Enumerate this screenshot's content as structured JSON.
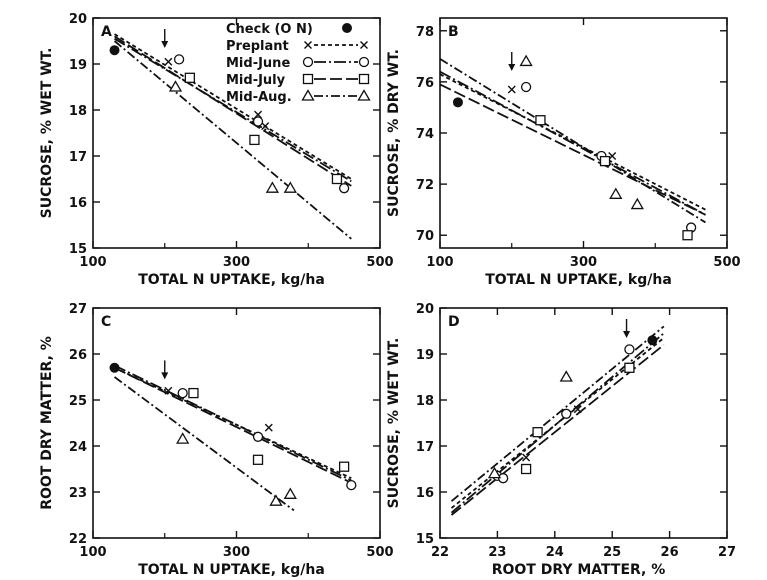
{
  "legend": {
    "check_label": "Check (O N)",
    "entries": [
      {
        "label": "Preplant",
        "marker": "x",
        "dash": "4,3"
      },
      {
        "label": "Mid-June",
        "marker": "circle",
        "dash": "12,3,2,3"
      },
      {
        "label": "Mid-July",
        "marker": "square",
        "dash": "12,4"
      },
      {
        "label": "Mid-Aug.",
        "marker": "triangle",
        "dash": "9,3,2,3"
      }
    ]
  },
  "chart_data": [
    {
      "panel": "A",
      "type": "scatter",
      "xlabel": "TOTAL N UPTAKE, kg/ha",
      "ylabel": "SUCROSE, % WET WT.",
      "xlim": [
        100,
        500
      ],
      "ylim": [
        15,
        20
      ],
      "xticks": [
        100,
        300,
        500
      ],
      "yticks": [
        15,
        16,
        17,
        18,
        19,
        20
      ],
      "arrow_at": [
        200,
        19.5
      ],
      "check": {
        "x": 130,
        "y": 19.3
      },
      "series": [
        {
          "name": "Preplant",
          "points": [
            [
              205,
              19.05
            ],
            [
              330,
              17.9
            ],
            [
              340,
              17.65
            ]
          ],
          "line": [
            [
              130,
              19.65
            ],
            [
              460,
              16.5
            ]
          ]
        },
        {
          "name": "Mid-June",
          "points": [
            [
              220,
              19.1
            ],
            [
              330,
              17.75
            ],
            [
              450,
              16.3
            ]
          ],
          "line": [
            [
              130,
              19.55
            ],
            [
              460,
              16.45
            ]
          ]
        },
        {
          "name": "Mid-July",
          "points": [
            [
              235,
              18.7
            ],
            [
              325,
              17.35
            ],
            [
              440,
              16.5
            ]
          ],
          "line": [
            [
              130,
              19.6
            ],
            [
              460,
              16.35
            ]
          ]
        },
        {
          "name": "Mid-Aug.",
          "points": [
            [
              215,
              18.5
            ],
            [
              350,
              16.3
            ],
            [
              375,
              16.3
            ]
          ],
          "line": [
            [
              130,
              19.5
            ],
            [
              460,
              15.2
            ]
          ]
        }
      ]
    },
    {
      "panel": "B",
      "type": "scatter",
      "xlabel": "TOTAL N UPTAKE, kg/ha",
      "ylabel": "SUCROSE, % DRY WT.",
      "xlim": [
        100,
        500
      ],
      "ylim": [
        69.5,
        78.5
      ],
      "xticks": [
        100,
        300,
        500
      ],
      "yticks": [
        70,
        72,
        74,
        76,
        78
      ],
      "arrow_at": [
        200,
        76.7
      ],
      "check": {
        "x": 125,
        "y": 75.2
      },
      "series": [
        {
          "name": "Preplant",
          "points": [
            [
              200,
              75.7
            ],
            [
              340,
              73.1
            ]
          ],
          "line": [
            [
              100,
              76.3
            ],
            [
              470,
              71.0
            ]
          ]
        },
        {
          "name": "Mid-June",
          "points": [
            [
              220,
              75.8
            ],
            [
              325,
              73.1
            ],
            [
              450,
              70.3
            ]
          ],
          "line": [
            [
              100,
              76.4
            ],
            [
              470,
              70.8
            ]
          ]
        },
        {
          "name": "Mid-July",
          "points": [
            [
              240,
              74.5
            ],
            [
              330,
              72.9
            ],
            [
              445,
              70.0
            ]
          ],
          "line": [
            [
              100,
              75.9
            ],
            [
              470,
              70.8
            ]
          ]
        },
        {
          "name": "Mid-Aug.",
          "points": [
            [
              220,
              76.8
            ],
            [
              345,
              71.6
            ],
            [
              375,
              71.2
            ]
          ],
          "line": [
            [
              100,
              76.9
            ],
            [
              470,
              70.5
            ]
          ]
        }
      ]
    },
    {
      "panel": "C",
      "type": "scatter",
      "xlabel": "TOTAL N UPTAKE, kg/ha",
      "ylabel": "ROOT DRY MATTER, %",
      "xlim": [
        100,
        500
      ],
      "ylim": [
        22,
        27
      ],
      "xticks": [
        100,
        300,
        500
      ],
      "yticks": [
        22,
        23,
        24,
        25,
        26,
        27
      ],
      "arrow_at": [
        200,
        25.6
      ],
      "check": {
        "x": 130,
        "y": 25.7
      },
      "series": [
        {
          "name": "Preplant",
          "points": [
            [
              205,
              25.2
            ],
            [
              345,
              24.4
            ]
          ],
          "line": [
            [
              130,
              25.7
            ],
            [
              460,
              23.3
            ]
          ]
        },
        {
          "name": "Mid-June",
          "points": [
            [
              225,
              25.15
            ],
            [
              330,
              24.2
            ],
            [
              460,
              23.15
            ]
          ],
          "line": [
            [
              130,
              25.75
            ],
            [
              460,
              23.25
            ]
          ]
        },
        {
          "name": "Mid-July",
          "points": [
            [
              240,
              25.15
            ],
            [
              330,
              23.7
            ],
            [
              450,
              23.55
            ]
          ],
          "line": [
            [
              130,
              25.7
            ],
            [
              460,
              23.2
            ]
          ]
        },
        {
          "name": "Mid-Aug.",
          "points": [
            [
              225,
              24.15
            ],
            [
              355,
              22.8
            ],
            [
              375,
              22.95
            ]
          ],
          "line": [
            [
              130,
              25.5
            ],
            [
              380,
              22.6
            ]
          ]
        }
      ]
    },
    {
      "panel": "D",
      "type": "scatter",
      "xlabel": "ROOT DRY MATTER, %",
      "ylabel": "SUCROSE, % WET WT.",
      "xlim": [
        22,
        27
      ],
      "ylim": [
        15,
        20
      ],
      "xticks": [
        22,
        23,
        24,
        25,
        26,
        27
      ],
      "yticks": [
        15,
        16,
        17,
        18,
        19,
        20
      ],
      "arrow_at": [
        25.25,
        19.5
      ],
      "check": {
        "x": 25.7,
        "y": 19.3
      },
      "series": [
        {
          "name": "Preplant",
          "points": [
            [
              23.5,
              16.75
            ],
            [
              24.4,
              17.8
            ]
          ],
          "line": [
            [
              22.2,
              15.65
            ],
            [
              25.9,
              19.35
            ]
          ]
        },
        {
          "name": "Mid-June",
          "points": [
            [
              23.0,
              16.35
            ],
            [
              23.1,
              16.3
            ],
            [
              24.2,
              17.7
            ],
            [
              25.3,
              19.1
            ]
          ],
          "line": [
            [
              22.2,
              15.55
            ],
            [
              25.9,
              19.45
            ]
          ]
        },
        {
          "name": "Mid-July",
          "points": [
            [
              23.5,
              16.5
            ],
            [
              23.7,
              17.3
            ],
            [
              25.3,
              18.7
            ]
          ],
          "line": [
            [
              22.2,
              15.5
            ],
            [
              25.9,
              19.2
            ]
          ]
        },
        {
          "name": "Mid-Aug.",
          "points": [
            [
              22.95,
              16.4
            ],
            [
              24.2,
              18.5
            ]
          ],
          "line": [
            [
              22.2,
              15.8
            ],
            [
              25.9,
              19.6
            ]
          ]
        }
      ]
    }
  ]
}
